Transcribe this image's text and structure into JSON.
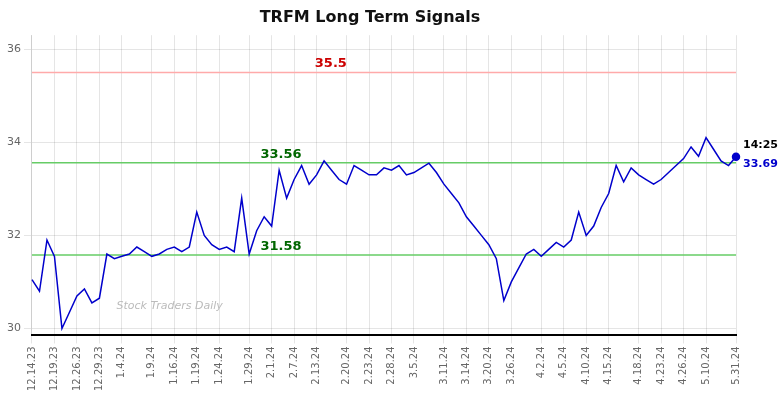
{
  "chart_data": {
    "type": "line",
    "title": "TRFM Long Term Signals",
    "categories": [
      "12.14.23",
      null,
      null,
      "12.19.23",
      null,
      null,
      "12.26.23",
      null,
      null,
      "12.29.23",
      null,
      null,
      "1.4.24",
      null,
      null,
      null,
      "1.9.24",
      null,
      null,
      "1.16.24",
      null,
      null,
      "1.19.24",
      null,
      null,
      "1.24.24",
      null,
      null,
      null,
      "1.29.24",
      null,
      null,
      "2.1.24",
      null,
      null,
      "2.7.24",
      null,
      null,
      "2.13.24",
      null,
      null,
      null,
      "2.20.24",
      null,
      null,
      "2.23.24",
      null,
      null,
      "2.28.24",
      null,
      null,
      "3.5.24",
      null,
      null,
      null,
      "3.11.24",
      null,
      null,
      "3.14.24",
      null,
      null,
      "3.20.24",
      null,
      null,
      "3.26.24",
      null,
      null,
      null,
      "4.2.24",
      null,
      null,
      "4.5.24",
      null,
      null,
      "4.10.24",
      null,
      null,
      "4.15.24",
      null,
      null,
      null,
      "4.18.24",
      null,
      null,
      "4.23.24",
      null,
      null,
      "4.26.24",
      null,
      null,
      "5.10.24",
      null,
      null,
      null,
      "5.31.24"
    ],
    "values": [
      31.05,
      30.8,
      31.9,
      31.55,
      30.0,
      30.35,
      30.7,
      30.85,
      30.55,
      30.65,
      31.6,
      31.5,
      31.55,
      31.6,
      31.75,
      31.65,
      31.55,
      31.6,
      31.7,
      31.75,
      31.65,
      31.75,
      32.5,
      32.0,
      31.8,
      31.7,
      31.75,
      31.65,
      32.8,
      31.6,
      32.1,
      32.4,
      32.2,
      33.4,
      32.8,
      33.2,
      33.5,
      33.1,
      33.3,
      33.6,
      33.4,
      33.2,
      33.1,
      33.5,
      33.4,
      33.3,
      33.3,
      33.45,
      33.4,
      33.5,
      33.3,
      33.35,
      33.45,
      33.55,
      33.35,
      33.1,
      32.9,
      32.7,
      32.4,
      32.2,
      32.0,
      31.8,
      31.5,
      30.6,
      31.0,
      31.3,
      31.6,
      31.7,
      31.55,
      31.7,
      31.85,
      31.75,
      31.9,
      32.5,
      32.0,
      32.2,
      32.6,
      32.9,
      33.5,
      33.15,
      33.45,
      33.3,
      33.2,
      33.1,
      33.2,
      33.35,
      33.5,
      33.65,
      33.9,
      33.7,
      34.1,
      33.85,
      33.6,
      33.5,
      33.69
    ],
    "color": "#0000cc",
    "ylim": [
      29.85,
      36.3
    ],
    "yticks": [
      30,
      32,
      34,
      36
    ],
    "grid": true,
    "reference_lines": [
      {
        "value": 35.5,
        "color": "#ffaaaa",
        "label": "35.5",
        "label_color": "#cc0000"
      },
      {
        "value": 33.56,
        "color": "#66cc66",
        "label": "33.56",
        "label_color": "#006600"
      },
      {
        "value": 31.58,
        "color": "#66cc66",
        "label": "31.58",
        "label_color": "#006600"
      }
    ],
    "annotations": [
      {
        "text": "14:25",
        "color": "#000000"
      },
      {
        "text": "33.69",
        "color": "#0000cc"
      }
    ],
    "watermark": "Stock Traders Daily"
  }
}
